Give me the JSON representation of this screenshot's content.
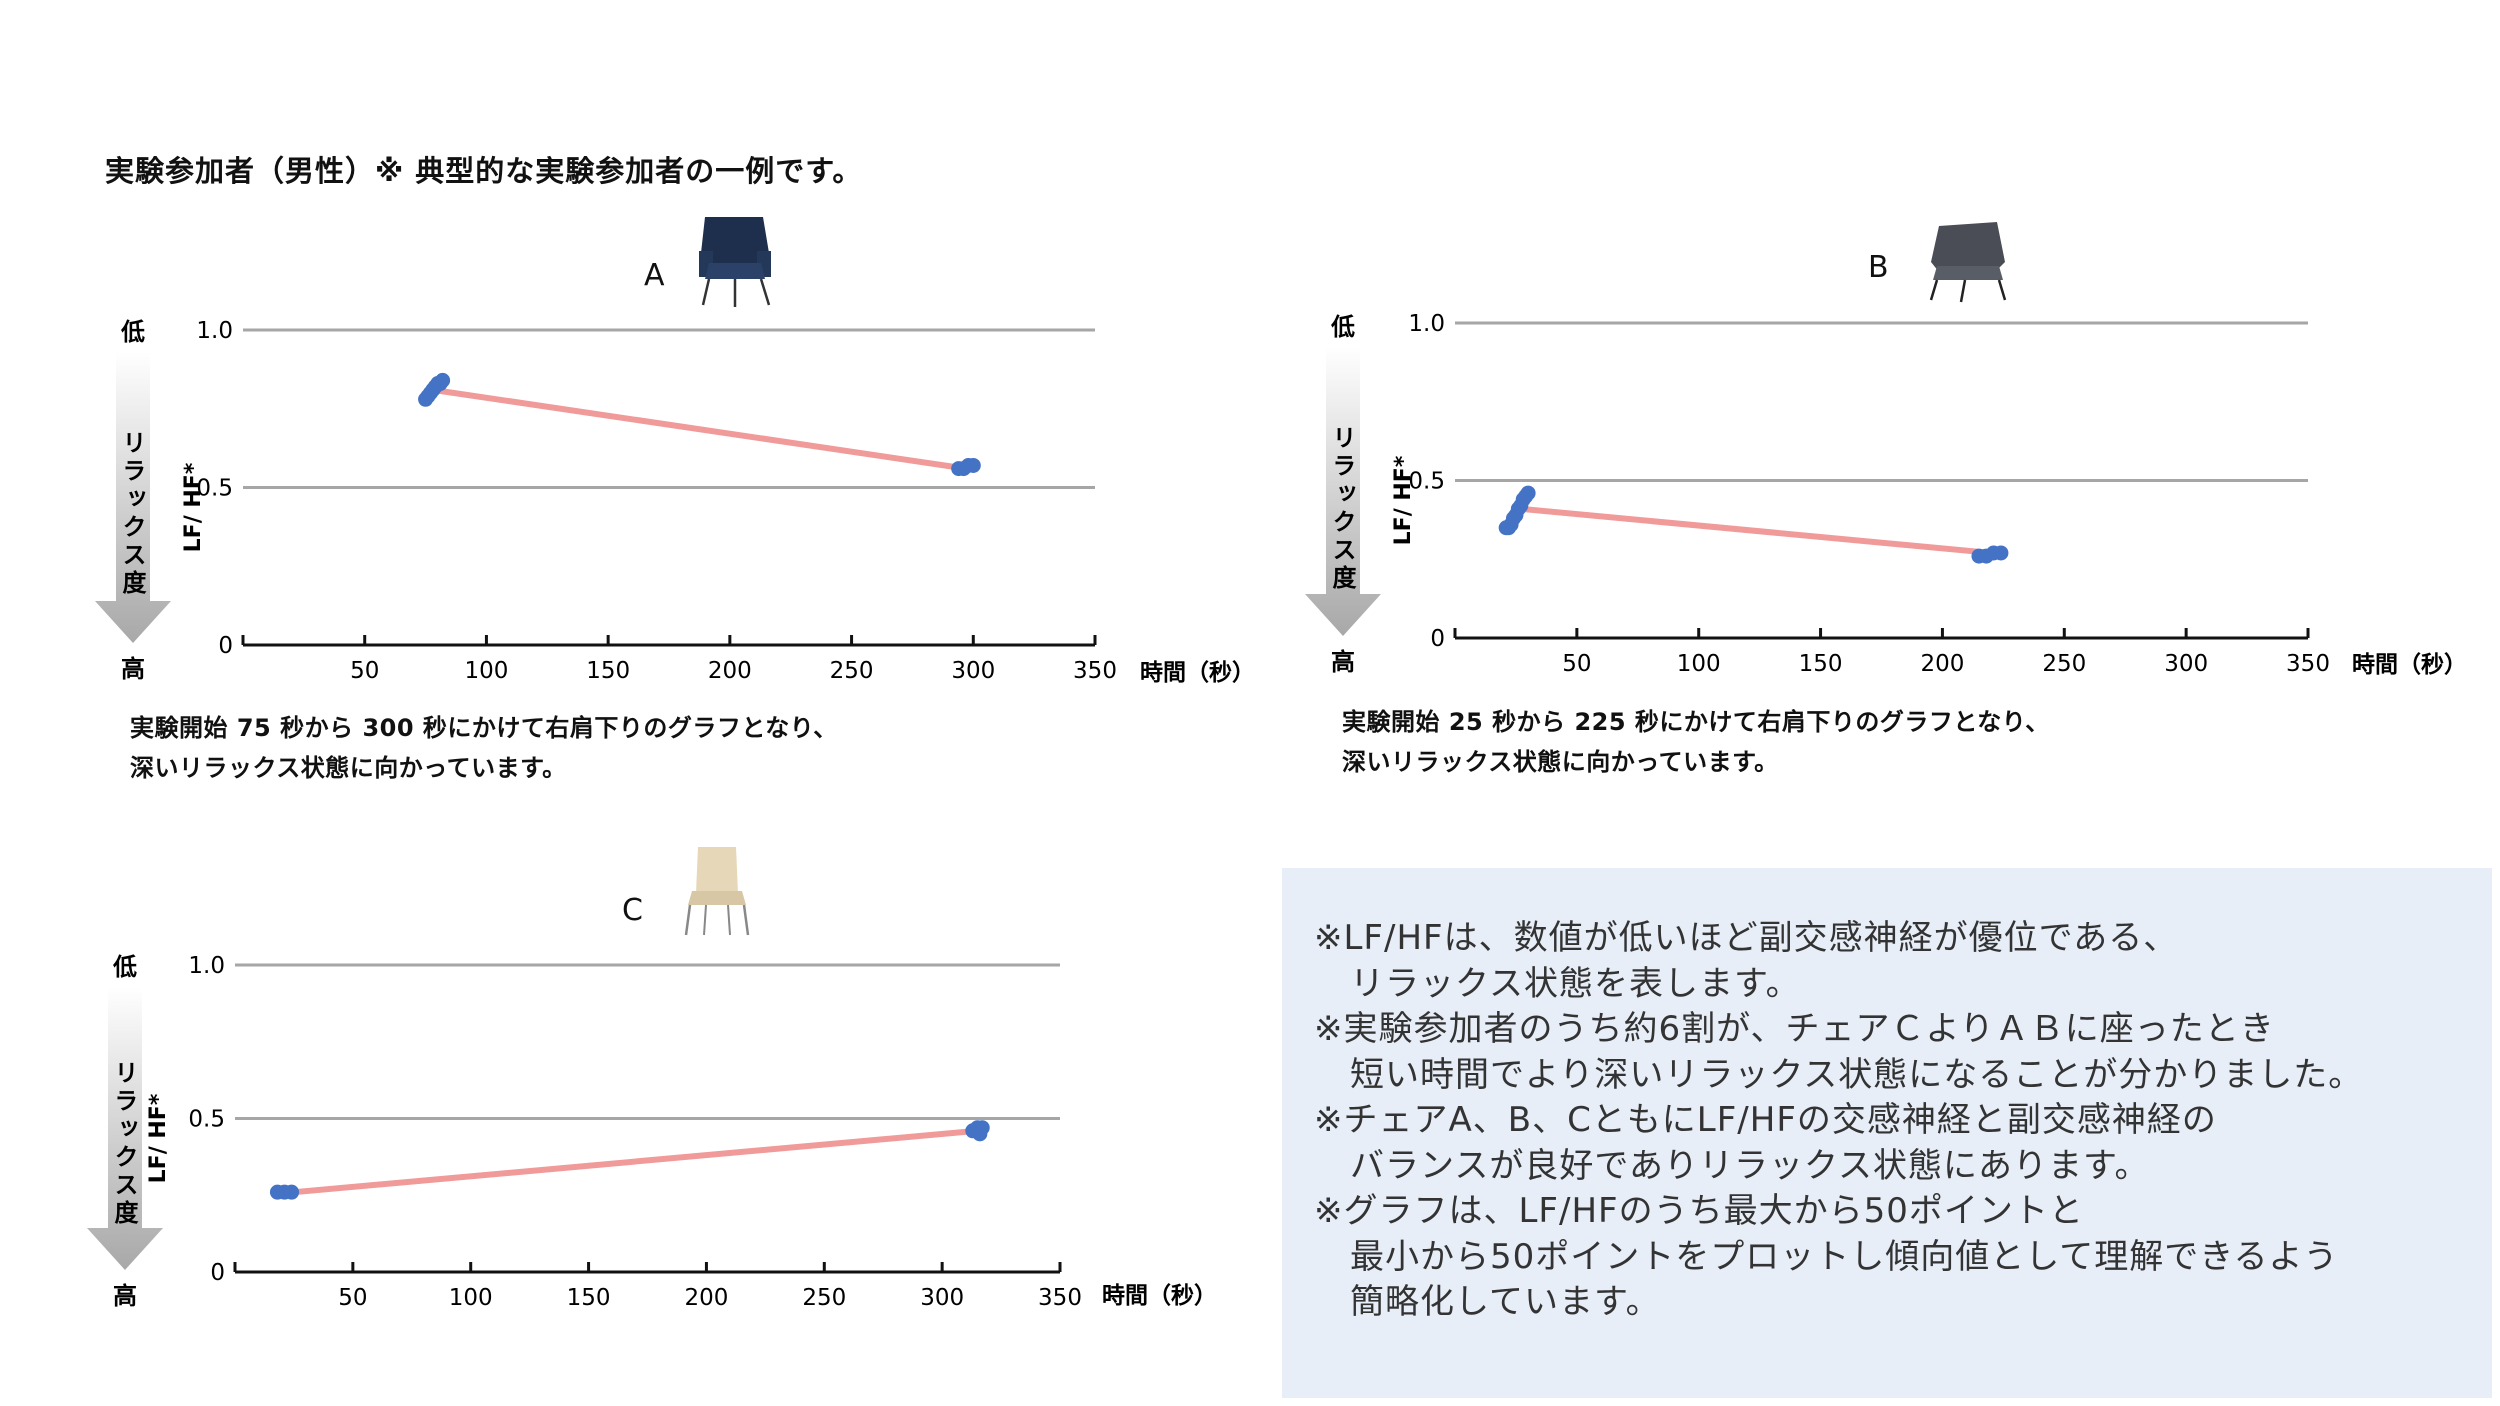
{
  "page_title": "実験参加者（男性）※ 典型的な実験参加者の一例です。",
  "axis": {
    "top_label": "低",
    "bottom_label": "高",
    "relax_label": "リラックス度",
    "ylabel": "LF/ HF*",
    "xlabel": "時間（秒）"
  },
  "chart_data": [
    {
      "type": "line",
      "title": "A",
      "xlabel": "時間（秒）",
      "ylabel": "LF/ HF*",
      "xlim": [
        0,
        350
      ],
      "ylim": [
        0,
        1.0
      ],
      "xticks": [
        50,
        100,
        150,
        200,
        250,
        300,
        350
      ],
      "yticks": [
        0,
        0.5,
        1.0
      ],
      "ytick_labels": [
        "0",
        "0.5",
        "1.0"
      ],
      "trend": {
        "x": [
          78,
          297
        ],
        "y": [
          0.81,
          0.56
        ]
      },
      "points": [
        {
          "x": 75,
          "y": 0.78
        },
        {
          "x": 76,
          "y": 0.79
        },
        {
          "x": 77,
          "y": 0.8
        },
        {
          "x": 78,
          "y": 0.81
        },
        {
          "x": 79,
          "y": 0.82
        },
        {
          "x": 80,
          "y": 0.83
        },
        {
          "x": 81,
          "y": 0.83
        },
        {
          "x": 82,
          "y": 0.84
        },
        {
          "x": 294,
          "y": 0.56
        },
        {
          "x": 296,
          "y": 0.56
        },
        {
          "x": 298,
          "y": 0.57
        },
        {
          "x": 300,
          "y": 0.57
        }
      ],
      "grid": true,
      "caption": [
        "実験開始 75 秒から 300 秒にかけて右肩下りのグラフとなり、",
        "深いリラックス状態に向かっています。"
      ]
    },
    {
      "type": "line",
      "title": "B",
      "xlabel": "時間（秒）",
      "ylabel": "LF/ HF*",
      "xlim": [
        0,
        350
      ],
      "ylim": [
        0,
        1.0
      ],
      "xticks": [
        50,
        100,
        150,
        200,
        250,
        300,
        350
      ],
      "yticks": [
        0,
        0.5,
        1.0
      ],
      "ytick_labels": [
        "0",
        "0.5",
        "1.0"
      ],
      "trend": {
        "x": [
          27,
          220
        ],
        "y": [
          0.41,
          0.27
        ]
      },
      "points": [
        {
          "x": 21,
          "y": 0.35
        },
        {
          "x": 22,
          "y": 0.35
        },
        {
          "x": 23,
          "y": 0.36
        },
        {
          "x": 24,
          "y": 0.38
        },
        {
          "x": 25,
          "y": 0.39
        },
        {
          "x": 26,
          "y": 0.41
        },
        {
          "x": 27,
          "y": 0.42
        },
        {
          "x": 28,
          "y": 0.44
        },
        {
          "x": 29,
          "y": 0.45
        },
        {
          "x": 30,
          "y": 0.46
        },
        {
          "x": 215,
          "y": 0.26
        },
        {
          "x": 218,
          "y": 0.26
        },
        {
          "x": 221,
          "y": 0.27
        },
        {
          "x": 224,
          "y": 0.27
        }
      ],
      "grid": true,
      "caption": [
        "実験開始 25 秒から 225 秒にかけて右肩下りのグラフとなり、",
        "深いリラックス状態に向かっています。"
      ]
    },
    {
      "type": "line",
      "title": "C",
      "xlabel": "時間（秒）",
      "ylabel": "LF/ HF*",
      "xlim": [
        0,
        350
      ],
      "ylim": [
        0,
        1.0
      ],
      "xticks": [
        50,
        100,
        150,
        200,
        250,
        300,
        350
      ],
      "yticks": [
        0,
        0.5,
        1.0
      ],
      "ytick_labels": [
        "0",
        "0.5",
        "1.0"
      ],
      "trend": {
        "x": [
          25,
          315
        ],
        "y": [
          0.26,
          0.46
        ]
      },
      "points": [
        {
          "x": 18,
          "y": 0.26
        },
        {
          "x": 21,
          "y": 0.26
        },
        {
          "x": 24,
          "y": 0.26
        },
        {
          "x": 313,
          "y": 0.46
        },
        {
          "x": 315,
          "y": 0.47
        },
        {
          "x": 317,
          "y": 0.47
        },
        {
          "x": 316,
          "y": 0.45
        }
      ],
      "grid": true,
      "caption": []
    }
  ],
  "notes": [
    {
      "text": "※LF/HFは、数値が低いほど副交感神経が優位である、",
      "indent": false
    },
    {
      "text": "リラックス状態を表します。",
      "indent": true
    },
    {
      "text": "※実験参加者のうち約6割が、チェアＣよりＡＢに座ったとき",
      "indent": false
    },
    {
      "text": "短い時間でより深いリラックス状態になることが分かりました。",
      "indent": true
    },
    {
      "text": "※チェアA、B、CともにLF/HFの交感神経と副交感神経の",
      "indent": false
    },
    {
      "text": "バランスが良好でありリラックス状態にあります。",
      "indent": true
    },
    {
      "text": "※グラフは、LF/HFのうち最大から50ポイントと",
      "indent": false
    },
    {
      "text": "最小から50ポイントをプロットし傾向値として理解できるよう",
      "indent": true
    },
    {
      "text": "簡略化しています。",
      "indent": true
    }
  ],
  "colors": {
    "trend_line": "#f09a9a",
    "points": "#4472c4",
    "grid": "#a6a6a6",
    "axis": "#111111",
    "arrow_top": "#ffffff",
    "arrow_bottom": "#a8a8a8",
    "note_bg": "#e7eef8"
  },
  "chairs": {
    "A": "navy-wing-armchair",
    "B": "gray-lounge-chair",
    "C": "beige-stacking-chair"
  }
}
